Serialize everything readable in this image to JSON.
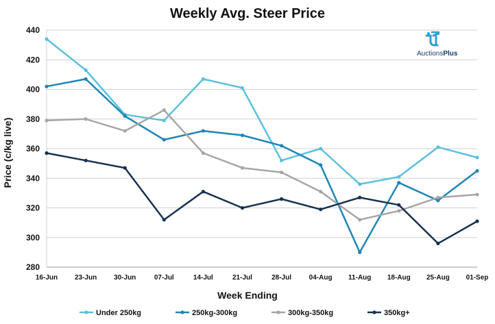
{
  "logo": {
    "text_main": "Auctions",
    "text_bold": "Plus"
  },
  "chart_data": {
    "type": "line",
    "title": "Weekly Avg. Steer Price",
    "xlabel": "Week Ending",
    "ylabel": "Price (c/kg live)",
    "categories": [
      "16-Jun",
      "23-Jun",
      "30-Jun",
      "07-Jul",
      "14-Jul",
      "21-Jul",
      "28-Jul",
      "04-Aug",
      "11-Aug",
      "18-Aug",
      "25-Aug",
      "01-Sep"
    ],
    "ylim": [
      280,
      440
    ],
    "yticks": [
      280,
      300,
      320,
      340,
      360,
      380,
      400,
      420,
      440
    ],
    "grid": true,
    "legend_position": "bottom",
    "series": [
      {
        "name": "Under 250kg",
        "color": "#5bc0de",
        "values": [
          434,
          413,
          383,
          379,
          407,
          401,
          352,
          360,
          336,
          341,
          361,
          354
        ]
      },
      {
        "name": "250kg-300kg",
        "color": "#1f84b5",
        "values": [
          402,
          407,
          382,
          366,
          372,
          369,
          362,
          349,
          290,
          337,
          325,
          345
        ]
      },
      {
        "name": "300kg-350kg",
        "color": "#a6a6a6",
        "values": [
          379,
          380,
          372,
          386,
          357,
          347,
          344,
          331,
          312,
          318,
          327,
          329
        ]
      },
      {
        "name": "350kg+",
        "color": "#16324f",
        "values": [
          357,
          352,
          347,
          312,
          331,
          320,
          326,
          319,
          327,
          322,
          296,
          311
        ]
      }
    ]
  }
}
